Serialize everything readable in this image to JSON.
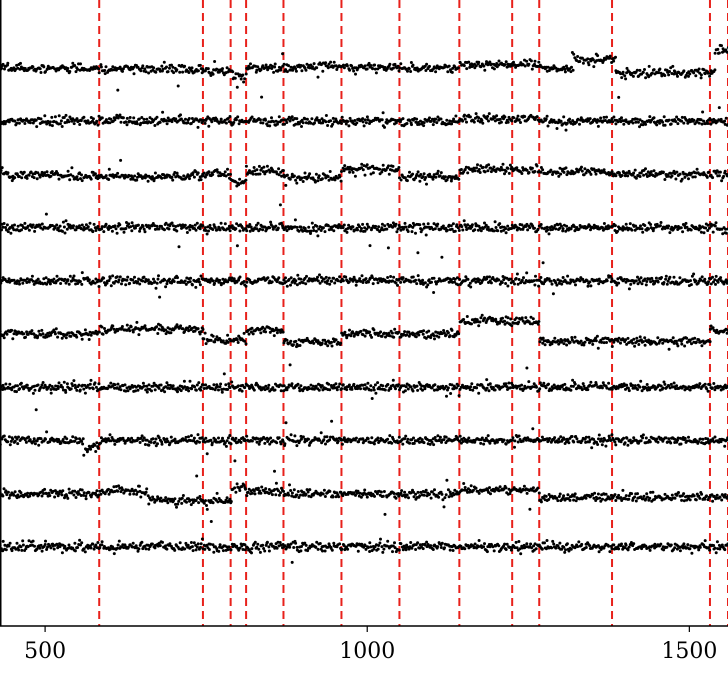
{
  "chart_data": {
    "type": "scatter",
    "title": "",
    "xlabel": "",
    "ylabel": "",
    "xlim": [
      430,
      1560
    ],
    "x_ticks": [
      {
        "value": 500,
        "label": "500"
      },
      {
        "value": 1000,
        "label": "1000"
      },
      {
        "value": 1500,
        "label": "1500"
      }
    ],
    "changepoints": [
      584,
      745,
      788,
      812,
      870,
      960,
      1050,
      1143,
      1225,
      1267,
      1380,
      1532,
      1560
    ],
    "changepoint_color": "#e8211b",
    "point_color": "#000000",
    "grid": false,
    "legend": "none",
    "n_series": 10,
    "series": [
      {
        "level": 1,
        "segments": [
          [
            430,
            584,
            0.0
          ],
          [
            584,
            745,
            -0.1
          ],
          [
            745,
            790,
            -0.3
          ],
          [
            790,
            812,
            -0.6
          ],
          [
            812,
            870,
            0.0
          ],
          [
            870,
            960,
            0.1
          ],
          [
            960,
            1050,
            0.1
          ],
          [
            1050,
            1143,
            0.0
          ],
          [
            1143,
            1267,
            0.3
          ],
          [
            1267,
            1320,
            0.0
          ],
          [
            1320,
            1385,
            0.7
          ],
          [
            1385,
            1540,
            -0.4
          ],
          [
            1540,
            1560,
            1.5
          ]
        ]
      },
      {
        "level": 2,
        "segments": [
          [
            430,
            584,
            0.0
          ],
          [
            584,
            1143,
            0.0
          ],
          [
            1143,
            1267,
            0.2
          ],
          [
            1267,
            1560,
            0.0
          ]
        ]
      },
      {
        "level": 3,
        "segments": [
          [
            430,
            520,
            0.0
          ],
          [
            520,
            584,
            -0.2
          ],
          [
            584,
            745,
            -0.2
          ],
          [
            745,
            788,
            0.0
          ],
          [
            788,
            812,
            -0.6
          ],
          [
            812,
            870,
            0.3
          ],
          [
            870,
            960,
            -0.3
          ],
          [
            960,
            1050,
            0.4
          ],
          [
            1050,
            1143,
            -0.2
          ],
          [
            1143,
            1267,
            0.4
          ],
          [
            1267,
            1380,
            0.2
          ],
          [
            1380,
            1560,
            0.0
          ]
        ]
      },
      {
        "level": 4,
        "segments": [
          [
            430,
            584,
            0.0
          ],
          [
            584,
            1560,
            0.0
          ]
        ]
      },
      {
        "level": 5,
        "segments": [
          [
            430,
            1560,
            0.0
          ]
        ]
      },
      {
        "level": 6,
        "segments": [
          [
            430,
            584,
            0.0
          ],
          [
            584,
            745,
            0.4
          ],
          [
            745,
            812,
            -0.5
          ],
          [
            812,
            870,
            0.3
          ],
          [
            870,
            960,
            -0.7
          ],
          [
            960,
            1143,
            0.0
          ],
          [
            1143,
            1267,
            1.1
          ],
          [
            1267,
            1380,
            -0.6
          ],
          [
            1380,
            1532,
            -0.6
          ],
          [
            1532,
            1560,
            0.2
          ]
        ]
      },
      {
        "level": 7,
        "segments": [
          [
            430,
            1560,
            0.0
          ]
        ]
      },
      {
        "level": 8,
        "segments": [
          [
            430,
            560,
            0.0
          ],
          [
            560,
            584,
            -0.6
          ],
          [
            584,
            1560,
            0.0
          ]
        ]
      },
      {
        "level": 9,
        "segments": [
          [
            430,
            584,
            0.0
          ],
          [
            584,
            660,
            0.2
          ],
          [
            660,
            790,
            -0.6
          ],
          [
            790,
            812,
            0.5
          ],
          [
            812,
            870,
            0.2
          ],
          [
            870,
            960,
            0.0
          ],
          [
            960,
            1143,
            0.0
          ],
          [
            1143,
            1267,
            0.3
          ],
          [
            1267,
            1560,
            -0.3
          ]
        ]
      },
      {
        "level": 10,
        "segments": [
          [
            430,
            584,
            0.0
          ],
          [
            584,
            1560,
            0.0
          ]
        ]
      }
    ]
  }
}
